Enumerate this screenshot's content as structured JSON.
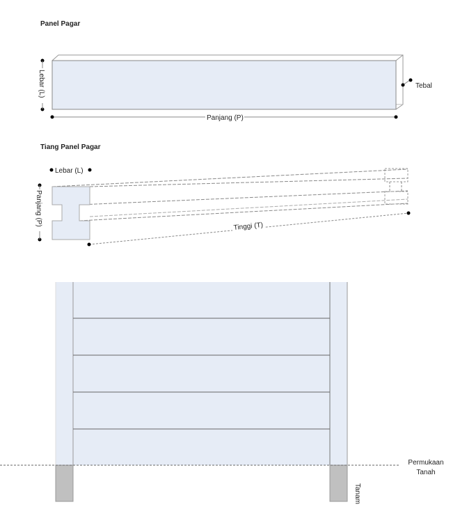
{
  "panel": {
    "title": "Panel Pagar",
    "width_label": "Lebar (L)",
    "length_label": "Panjang (P)",
    "thickness_label": "Tebal"
  },
  "post": {
    "title": "Tiang Panel Pagar",
    "width_label": "Lebar (L)",
    "length_label": "Panjang (P)",
    "height_label": "Tinggi (T)"
  },
  "fence": {
    "ground_label_line1": "Permukaan",
    "ground_label_line2": "Tanah",
    "buried_label": "Tanam"
  },
  "colors": {
    "fill": "#e6ecf6",
    "buried": "#c0c0c0",
    "line": "#666666"
  }
}
